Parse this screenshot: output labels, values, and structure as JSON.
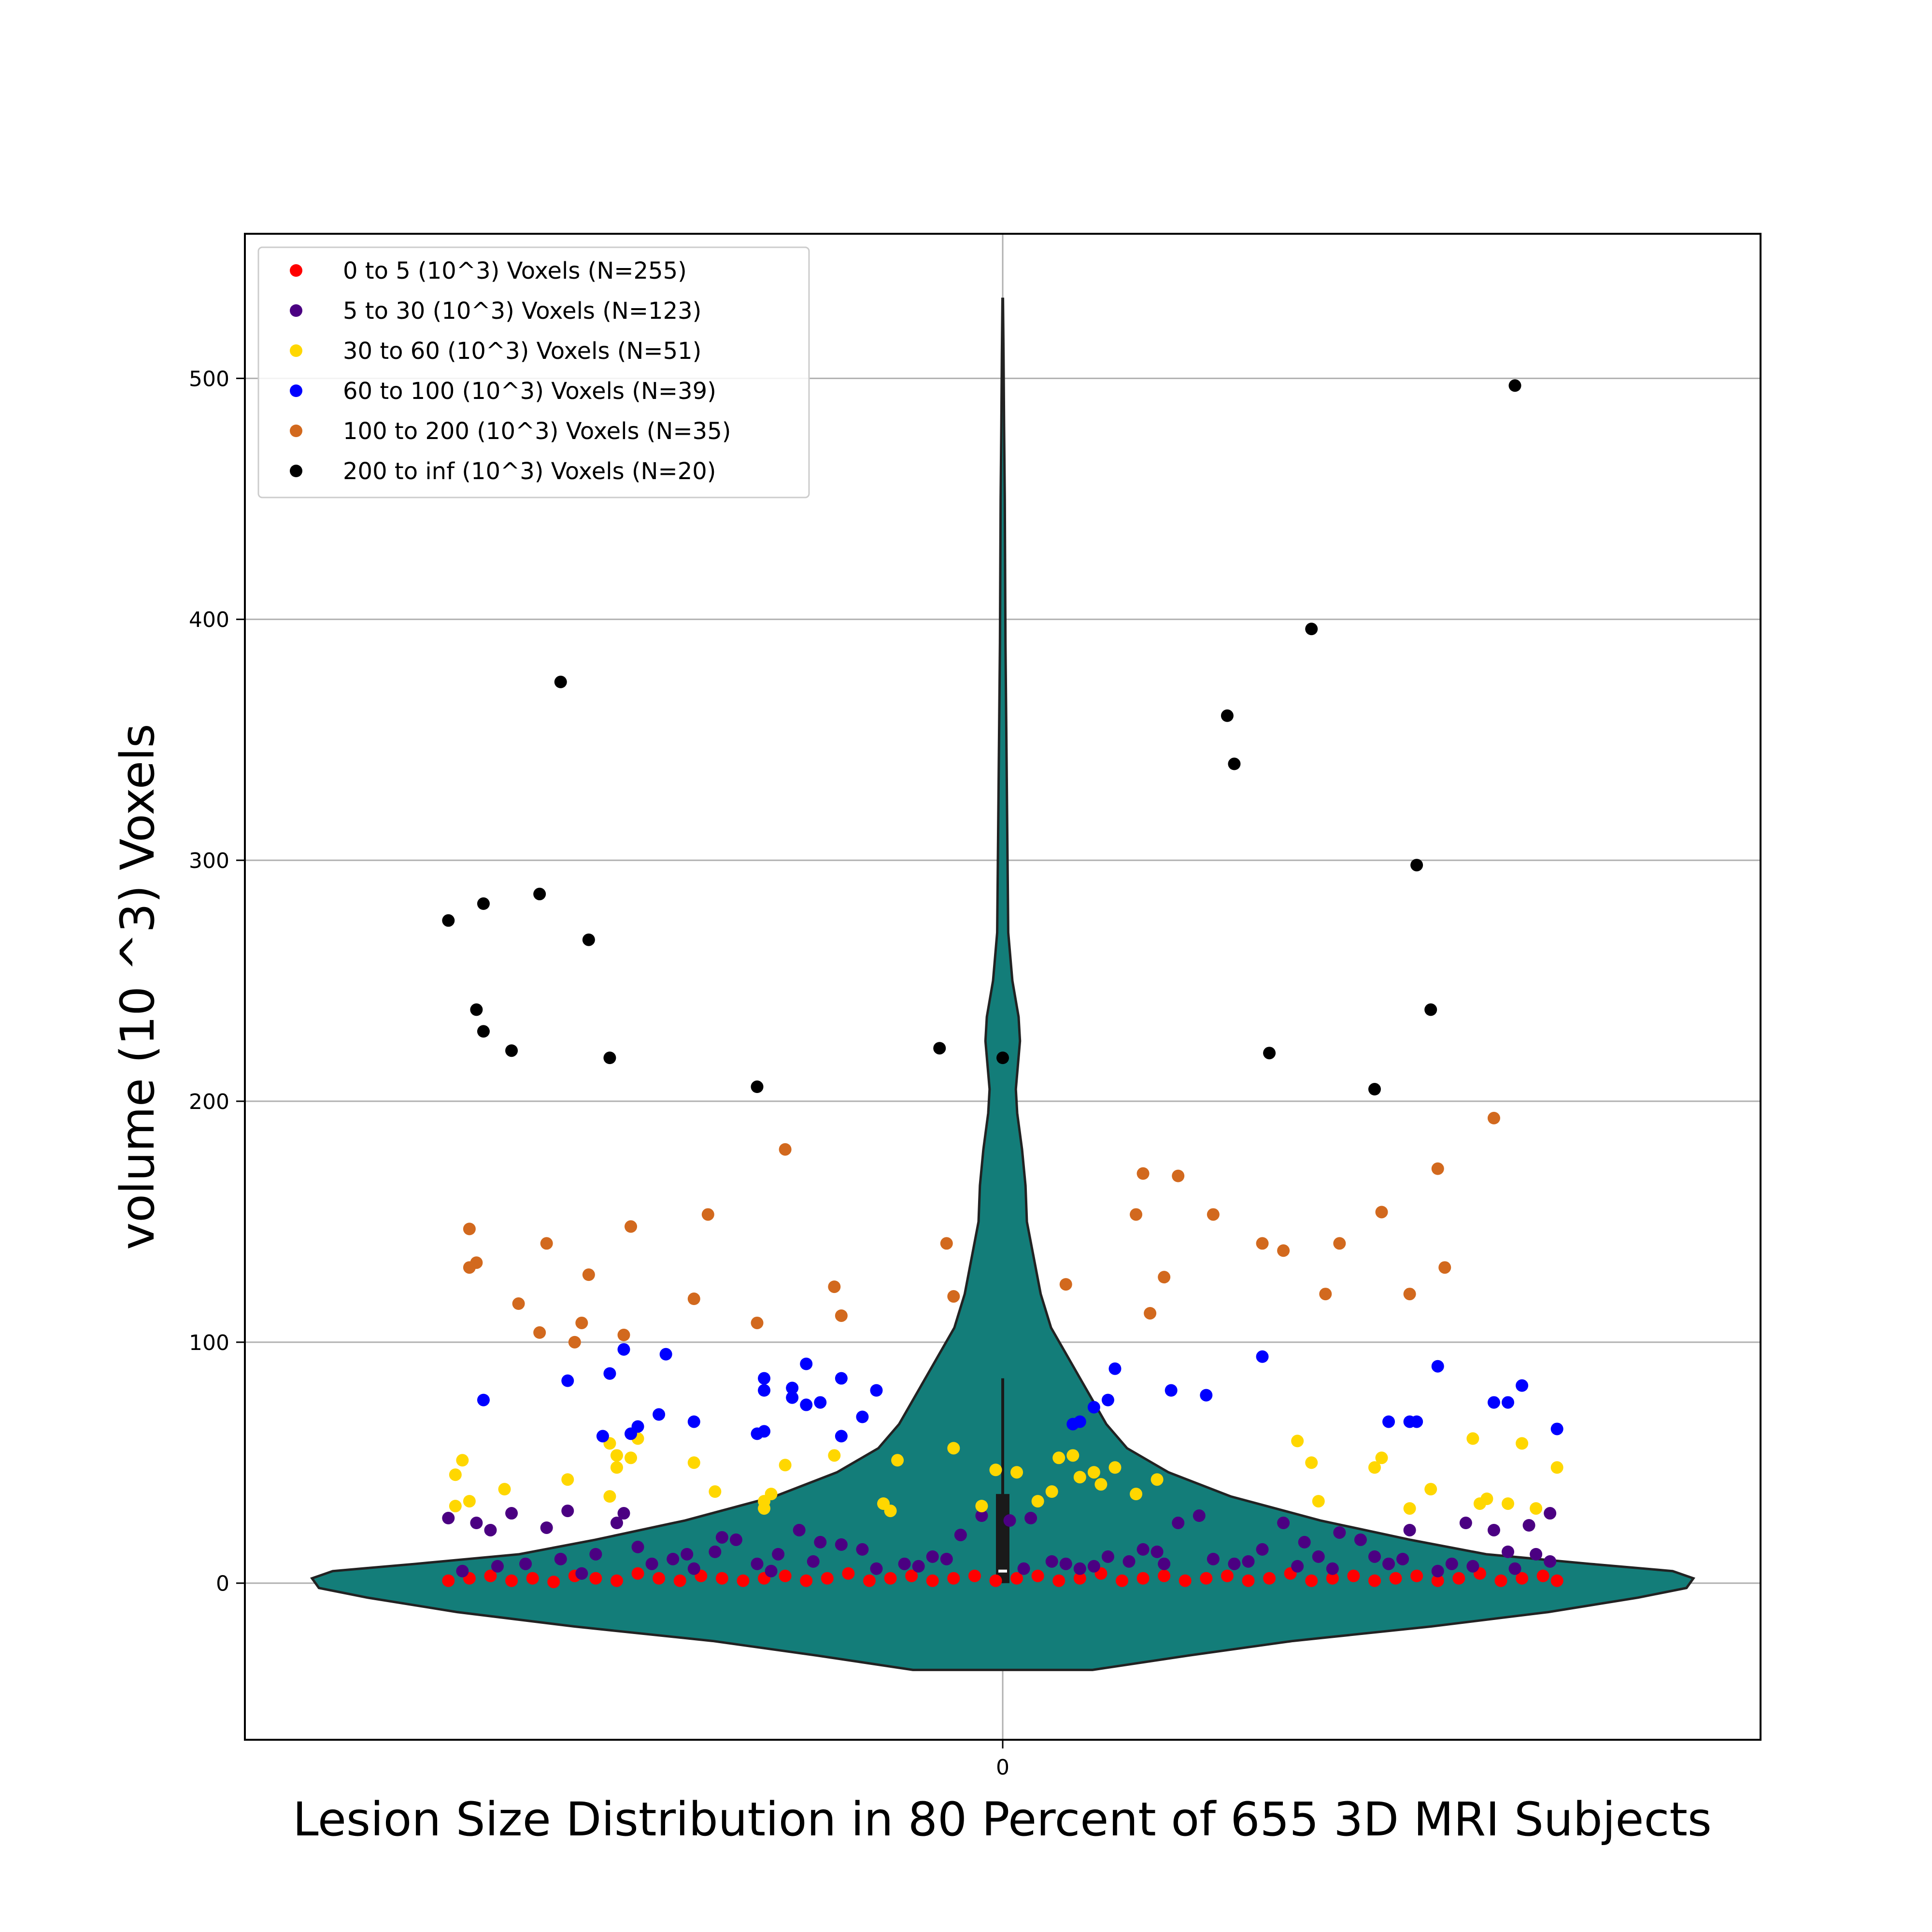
{
  "chart_data": {
    "type": "scatter",
    "overlay": "violin",
    "xlabel": "Lesion Size Distribution in 80 Percent of 655 3D MRI Subjects",
    "ylabel": "volume (10 ^3) Voxels",
    "x_ticks": [
      "0"
    ],
    "y_ticks": [
      0,
      100,
      200,
      300,
      400,
      500
    ],
    "ylim": [
      -65,
      560
    ],
    "grid": true,
    "legend_position": "upper-left",
    "violin": {
      "color": "#137d79",
      "edge_color": "#222222",
      "box": {
        "q1": 0,
        "median": 5,
        "q3": 37,
        "whisker_low": 0,
        "whisker_high": 85
      }
    },
    "series": [
      {
        "name": "0 to 5 (10^3) Voxels (N=255)",
        "color": "#ff0000",
        "points": [
          [
            -0.79,
            1
          ],
          [
            -0.76,
            2
          ],
          [
            -0.73,
            3
          ],
          [
            -0.7,
            1
          ],
          [
            -0.67,
            2
          ],
          [
            -0.64,
            0.5
          ],
          [
            -0.61,
            3
          ],
          [
            -0.58,
            2
          ],
          [
            -0.55,
            1
          ],
          [
            -0.52,
            4
          ],
          [
            -0.49,
            2
          ],
          [
            -0.46,
            1
          ],
          [
            -0.43,
            3
          ],
          [
            -0.4,
            2
          ],
          [
            -0.37,
            1
          ],
          [
            -0.34,
            2
          ],
          [
            -0.31,
            3
          ],
          [
            -0.28,
            1
          ],
          [
            -0.25,
            2
          ],
          [
            -0.22,
            4
          ],
          [
            -0.19,
            1
          ],
          [
            -0.16,
            2
          ],
          [
            -0.13,
            3
          ],
          [
            -0.1,
            1
          ],
          [
            -0.07,
            2
          ],
          [
            -0.04,
            3
          ],
          [
            -0.01,
            1
          ],
          [
            0.02,
            2
          ],
          [
            0.05,
            3
          ],
          [
            0.08,
            1
          ],
          [
            0.11,
            2
          ],
          [
            0.14,
            4
          ],
          [
            0.17,
            1
          ],
          [
            0.2,
            2
          ],
          [
            0.23,
            3
          ],
          [
            0.26,
            1
          ],
          [
            0.29,
            2
          ],
          [
            0.32,
            3
          ],
          [
            0.35,
            1
          ],
          [
            0.38,
            2
          ],
          [
            0.41,
            4
          ],
          [
            0.44,
            1
          ],
          [
            0.47,
            2
          ],
          [
            0.5,
            3
          ],
          [
            0.53,
            1
          ],
          [
            0.56,
            2
          ],
          [
            0.59,
            3
          ],
          [
            0.62,
            1
          ],
          [
            0.65,
            2
          ],
          [
            0.68,
            4
          ],
          [
            0.71,
            1
          ],
          [
            0.74,
            2
          ],
          [
            0.77,
            3
          ],
          [
            0.79,
            1
          ]
        ]
      },
      {
        "name": "5 to 30 (10^3) Voxels (N=123)",
        "color": "#4b0082",
        "points": [
          [
            -0.79,
            27
          ],
          [
            -0.75,
            25
          ],
          [
            -0.73,
            22
          ],
          [
            -0.7,
            29
          ],
          [
            -0.65,
            23
          ],
          [
            -0.62,
            30
          ],
          [
            -0.58,
            12
          ],
          [
            -0.55,
            25
          ],
          [
            -0.54,
            29
          ],
          [
            -0.52,
            15
          ],
          [
            -0.5,
            8
          ],
          [
            -0.47,
            10
          ],
          [
            -0.44,
            6
          ],
          [
            -0.4,
            19
          ],
          [
            -0.38,
            18
          ],
          [
            -0.35,
            8
          ],
          [
            -0.32,
            12
          ],
          [
            -0.29,
            22
          ],
          [
            -0.26,
            17
          ],
          [
            -0.23,
            16
          ],
          [
            -0.2,
            14
          ],
          [
            -0.14,
            8
          ],
          [
            -0.1,
            11
          ],
          [
            -0.06,
            20
          ],
          [
            -0.03,
            28
          ],
          [
            0.01,
            26
          ],
          [
            0.04,
            27
          ],
          [
            0.07,
            9
          ],
          [
            0.11,
            6
          ],
          [
            0.15,
            11
          ],
          [
            0.2,
            14
          ],
          [
            0.22,
            13
          ],
          [
            0.25,
            25
          ],
          [
            0.28,
            28
          ],
          [
            0.33,
            8
          ],
          [
            0.37,
            14
          ],
          [
            0.4,
            25
          ],
          [
            0.43,
            17
          ],
          [
            0.45,
            11
          ],
          [
            0.48,
            21
          ],
          [
            0.51,
            18
          ],
          [
            0.55,
            8
          ],
          [
            0.58,
            22
          ],
          [
            0.62,
            5
          ],
          [
            0.66,
            25
          ],
          [
            0.7,
            22
          ],
          [
            0.72,
            13
          ],
          [
            0.76,
            12
          ],
          [
            0.78,
            9
          ],
          [
            0.78,
            29
          ],
          [
            -0.77,
            5
          ],
          [
            -0.68,
            8
          ],
          [
            -0.6,
            4
          ],
          [
            -0.45,
            12
          ],
          [
            -0.33,
            5
          ],
          [
            -0.18,
            6
          ],
          [
            -0.08,
            10
          ],
          [
            0.03,
            6
          ],
          [
            0.13,
            7
          ],
          [
            0.23,
            8
          ],
          [
            0.35,
            9
          ],
          [
            0.47,
            6
          ],
          [
            0.57,
            10
          ],
          [
            0.67,
            7
          ],
          [
            0.75,
            24
          ],
          [
            -0.72,
            7
          ],
          [
            -0.63,
            10
          ],
          [
            -0.41,
            13
          ],
          [
            -0.27,
            9
          ],
          [
            -0.12,
            7
          ],
          [
            0.09,
            8
          ],
          [
            0.18,
            9
          ],
          [
            0.3,
            10
          ],
          [
            0.42,
            7
          ],
          [
            0.53,
            11
          ],
          [
            0.64,
            8
          ],
          [
            0.73,
            6
          ]
        ]
      },
      {
        "name": "30 to 60 (10^3) Voxels (N=51)",
        "color": "#ffd700",
        "points": [
          [
            -0.78,
            32
          ],
          [
            -0.78,
            45
          ],
          [
            -0.77,
            51
          ],
          [
            -0.76,
            34
          ],
          [
            -0.71,
            39
          ],
          [
            -0.62,
            43
          ],
          [
            -0.56,
            36
          ],
          [
            -0.56,
            58
          ],
          [
            -0.55,
            48
          ],
          [
            -0.55,
            53
          ],
          [
            -0.53,
            52
          ],
          [
            -0.52,
            60
          ],
          [
            -0.44,
            50
          ],
          [
            -0.41,
            38
          ],
          [
            -0.34,
            34
          ],
          [
            -0.34,
            31
          ],
          [
            -0.33,
            37
          ],
          [
            -0.31,
            49
          ],
          [
            -0.24,
            53
          ],
          [
            -0.17,
            33
          ],
          [
            -0.16,
            30
          ],
          [
            -0.15,
            51
          ],
          [
            -0.07,
            56
          ],
          [
            -0.03,
            32
          ],
          [
            -0.01,
            47
          ],
          [
            0.02,
            46
          ],
          [
            0.05,
            34
          ],
          [
            0.07,
            38
          ],
          [
            0.08,
            52
          ],
          [
            0.1,
            53
          ],
          [
            0.11,
            44
          ],
          [
            0.13,
            46
          ],
          [
            0.14,
            41
          ],
          [
            0.16,
            48
          ],
          [
            0.19,
            37
          ],
          [
            0.22,
            43
          ],
          [
            0.42,
            59
          ],
          [
            0.44,
            50
          ],
          [
            0.45,
            34
          ],
          [
            0.53,
            48
          ],
          [
            0.54,
            52
          ],
          [
            0.58,
            31
          ],
          [
            0.61,
            39
          ],
          [
            0.67,
            60
          ],
          [
            0.68,
            33
          ],
          [
            0.69,
            35
          ],
          [
            0.72,
            33
          ],
          [
            0.74,
            58
          ],
          [
            0.76,
            31
          ],
          [
            0.79,
            48
          ]
        ]
      },
      {
        "name": "60 to 100 (10^3) Voxels (N=39)",
        "color": "#0000ff",
        "points": [
          [
            -0.74,
            76
          ],
          [
            -0.62,
            84
          ],
          [
            -0.57,
            61
          ],
          [
            -0.56,
            87
          ],
          [
            -0.54,
            97
          ],
          [
            -0.53,
            62
          ],
          [
            -0.52,
            65
          ],
          [
            -0.49,
            70
          ],
          [
            -0.48,
            95
          ],
          [
            -0.44,
            67
          ],
          [
            -0.35,
            62
          ],
          [
            -0.34,
            63
          ],
          [
            -0.34,
            80
          ],
          [
            -0.34,
            85
          ],
          [
            -0.3,
            77
          ],
          [
            -0.3,
            81
          ],
          [
            -0.28,
            91
          ],
          [
            -0.28,
            74
          ],
          [
            -0.26,
            75
          ],
          [
            -0.23,
            61
          ],
          [
            -0.23,
            85
          ],
          [
            -0.2,
            69
          ],
          [
            -0.18,
            80
          ],
          [
            0.1,
            66
          ],
          [
            0.11,
            67
          ],
          [
            0.13,
            73
          ],
          [
            0.15,
            76
          ],
          [
            0.16,
            89
          ],
          [
            0.24,
            80
          ],
          [
            0.29,
            78
          ],
          [
            0.37,
            94
          ],
          [
            0.55,
            67
          ],
          [
            0.58,
            67
          ],
          [
            0.59,
            67
          ],
          [
            0.62,
            90
          ],
          [
            0.7,
            75
          ],
          [
            0.72,
            75
          ],
          [
            0.74,
            82
          ],
          [
            0.79,
            64
          ]
        ]
      },
      {
        "name": "100 to 200 (10^3) Voxels (N=35)",
        "color": "#d2691e",
        "points": [
          [
            -0.76,
            131
          ],
          [
            -0.76,
            147
          ],
          [
            -0.75,
            133
          ],
          [
            -0.69,
            116
          ],
          [
            -0.66,
            104
          ],
          [
            -0.65,
            141
          ],
          [
            -0.61,
            100
          ],
          [
            -0.6,
            108
          ],
          [
            -0.59,
            128
          ],
          [
            -0.54,
            103
          ],
          [
            -0.53,
            148
          ],
          [
            -0.44,
            118
          ],
          [
            -0.42,
            153
          ],
          [
            -0.35,
            108
          ],
          [
            -0.31,
            180
          ],
          [
            -0.24,
            123
          ],
          [
            -0.23,
            111
          ],
          [
            -0.08,
            141
          ],
          [
            -0.07,
            119
          ],
          [
            0.09,
            124
          ],
          [
            0.19,
            153
          ],
          [
            0.2,
            170
          ],
          [
            0.21,
            112
          ],
          [
            0.23,
            127
          ],
          [
            0.25,
            169
          ],
          [
            0.3,
            153
          ],
          [
            0.37,
            141
          ],
          [
            0.4,
            138
          ],
          [
            0.46,
            120
          ],
          [
            0.48,
            141
          ],
          [
            0.54,
            154
          ],
          [
            0.58,
            120
          ],
          [
            0.62,
            172
          ],
          [
            0.63,
            131
          ],
          [
            0.7,
            193
          ]
        ]
      },
      {
        "name": "200 to inf (10^3) Voxels (N=20)",
        "color": "#000000",
        "points": [
          [
            -0.79,
            275
          ],
          [
            -0.75,
            238
          ],
          [
            -0.74,
            229
          ],
          [
            -0.74,
            282
          ],
          [
            -0.7,
            221
          ],
          [
            -0.66,
            286
          ],
          [
            -0.63,
            374
          ],
          [
            -0.59,
            267
          ],
          [
            -0.56,
            218
          ],
          [
            -0.35,
            206
          ],
          [
            -0.09,
            222
          ],
          [
            0.0,
            218
          ],
          [
            0.32,
            360
          ],
          [
            0.33,
            340
          ],
          [
            0.38,
            220
          ],
          [
            0.44,
            396
          ],
          [
            0.53,
            205
          ],
          [
            0.59,
            298
          ],
          [
            0.61,
            238
          ],
          [
            0.73,
            497
          ]
        ]
      }
    ]
  }
}
